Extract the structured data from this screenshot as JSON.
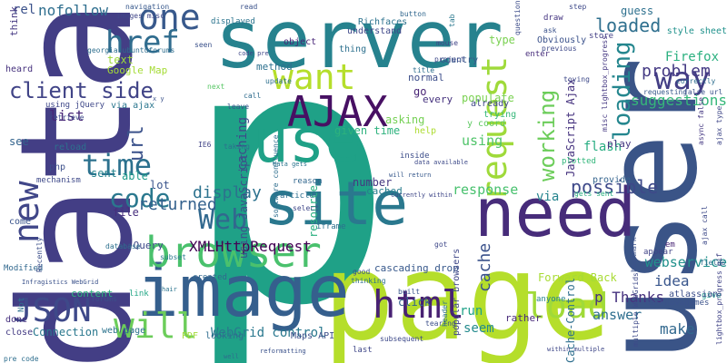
{
  "word_cloud": {
    "words": [
      {
        "text": "p",
        "color": "#1fa187"
      },
      {
        "text": "data",
        "color": "#433e85"
      },
      {
        "text": "user",
        "color": "#3a5487"
      },
      {
        "text": "page",
        "color": "#b5de2b"
      },
      {
        "text": "server",
        "color": "#26828e"
      },
      {
        "text": "image",
        "color": "#355f8d"
      },
      {
        "text": "use",
        "color": "#1fa187"
      },
      {
        "text": "site",
        "color": "#2a788e"
      },
      {
        "text": "need",
        "color": "#472c7a"
      },
      {
        "text": "AJAX",
        "color": "#471063"
      },
      {
        "text": "browser",
        "color": "#4ac16d"
      },
      {
        "text": "want",
        "color": "#b5de2b"
      },
      {
        "text": "html",
        "color": "#482173"
      },
      {
        "text": "request",
        "color": "#9fda3a"
      },
      {
        "text": "will",
        "color": "#6ccd5a"
      },
      {
        "text": "one",
        "color": "#38598c"
      },
      {
        "text": "way",
        "color": "#433e85"
      },
      {
        "text": "new",
        "color": "#404688"
      },
      {
        "text": "load",
        "color": "#a0da39"
      },
      {
        "text": "JSON",
        "color": "#3e4989"
      },
      {
        "text": "time",
        "color": "#2c718e"
      },
      {
        "text": "href",
        "color": "#2f6c8e"
      },
      {
        "text": "client side",
        "color": "#414487"
      },
      {
        "text": "code",
        "color": "#2a788e"
      },
      {
        "text": "Web",
        "color": "#31688e"
      },
      {
        "text": "loading",
        "color": "#24868e"
      },
      {
        "text": "loaded",
        "color": "#2e6f8e"
      },
      {
        "text": "working",
        "color": "#6ccd5a"
      },
      {
        "text": "url",
        "color": "#3b528b"
      },
      {
        "text": "problem",
        "color": "#443983"
      },
      {
        "text": "possible",
        "color": "#3e4989"
      },
      {
        "text": "returned",
        "color": "#34618d"
      },
      {
        "text": "display",
        "color": "#2c728e"
      },
      {
        "text": "XMLHttpRequest",
        "color": "#440154"
      },
      {
        "text": "suggestions",
        "color": "#35b779"
      },
      {
        "text": "webservice",
        "color": "#21918c"
      },
      {
        "text": "Firefox",
        "color": "#2ab07f"
      },
      {
        "text": "cache",
        "color": "#3b528b"
      },
      {
        "text": "response",
        "color": "#48c16e"
      },
      {
        "text": "using",
        "color": "#50c46a"
      },
      {
        "text": "list",
        "color": "#482878"
      },
      {
        "text": "idea",
        "color": "#39568c"
      },
      {
        "text": "p Thanks",
        "color": "#46327e"
      },
      {
        "text": "answer",
        "color": "#2e6e8e"
      },
      {
        "text": "make",
        "color": "#31688e"
      },
      {
        "text": "flash",
        "color": "#27ad81"
      },
      {
        "text": "run",
        "color": "#1fa187"
      },
      {
        "text": "seem",
        "color": "#238a8d"
      },
      {
        "text": "caching",
        "color": "#3e4989"
      },
      {
        "text": "sent",
        "color": "#25838e"
      },
      {
        "text": "able",
        "color": "#1e9b8a"
      },
      {
        "text": "WebGrid control",
        "color": "#2a788e"
      },
      {
        "text": "Forward Back",
        "color": "#a8db34"
      },
      {
        "text": "JavaScript Ajax",
        "color": "#46337f"
      },
      {
        "text": "Cache-Control",
        "color": "#2e6f8e"
      },
      {
        "text": "using JavaScript",
        "color": "#3c508b"
      },
      {
        "text": "resource",
        "color": "#29af7f"
      },
      {
        "text": "via",
        "color": "#25848e"
      },
      {
        "text": "nofollow",
        "color": "#2e6e8e"
      },
      {
        "text": "rel",
        "color": "#3b528b"
      },
      {
        "text": "Google Map",
        "color": "#a5db36"
      },
      {
        "text": "method",
        "color": "#2d708e"
      },
      {
        "text": "asking",
        "color": "#75d054"
      },
      {
        "text": "given time",
        "color": "#2db27d"
      },
      {
        "text": "populate",
        "color": "#7ad151"
      },
      {
        "text": "type",
        "color": "#7ad151"
      },
      {
        "text": "number",
        "color": "#453781"
      },
      {
        "text": "cached",
        "color": "#287d8e"
      },
      {
        "text": "lot",
        "color": "#3a548c"
      },
      {
        "text": "file",
        "color": "#472f7d"
      },
      {
        "text": "text",
        "color": "#9dd93b"
      },
      {
        "text": "jQuery",
        "color": "#3e4989"
      },
      {
        "text": "cascading drop",
        "color": "#38598c"
      },
      {
        "text": "click",
        "color": "#33628d"
      },
      {
        "text": "go",
        "color": "#482475"
      },
      {
        "text": "normal",
        "color": "#3d4e8a"
      },
      {
        "text": "every",
        "color": "#46327e"
      },
      {
        "text": "Obviously",
        "color": "#3b528b"
      },
      {
        "text": "style sheet",
        "color": "#20928c"
      },
      {
        "text": "guess",
        "color": "#2d708e"
      },
      {
        "text": "Maps API",
        "color": "#3c4f8a"
      },
      {
        "text": "web page",
        "color": "#2c738e"
      },
      {
        "text": "Connection",
        "color": "#2a788e"
      },
      {
        "text": "content",
        "color": "#2db27d"
      },
      {
        "text": "close",
        "color": "#443b84"
      },
      {
        "text": "done",
        "color": "#46307e"
      },
      {
        "text": "come",
        "color": "#3a548c"
      },
      {
        "text": "see",
        "color": "#33638d"
      },
      {
        "text": "think",
        "color": "#453882"
      },
      {
        "text": "heard",
        "color": "#46327e"
      },
      {
        "text": "php",
        "color": "#3c4f8a"
      },
      {
        "text": "reload",
        "color": "#2d708e"
      },
      {
        "text": "mechanism",
        "color": "#3e4989"
      },
      {
        "text": "via ajax",
        "color": "#2a768e"
      },
      {
        "text": "country",
        "color": "#38598c"
      },
      {
        "text": "object",
        "color": "#482677"
      },
      {
        "text": "thing",
        "color": "#2d708e"
      },
      {
        "text": "y coord",
        "color": "#5ec962"
      },
      {
        "text": "already",
        "color": "#3f4788"
      },
      {
        "text": "trying",
        "color": "#35b779"
      },
      {
        "text": "play",
        "color": "#453781"
      },
      {
        "text": "provide",
        "color": "#33638d"
      },
      {
        "text": "rather",
        "color": "#482979"
      },
      {
        "text": "anyone",
        "color": "#26818e"
      },
      {
        "text": "store",
        "color": "#433e85"
      },
      {
        "text": "enter",
        "color": "#472d7b"
      },
      {
        "text": "Richfaces",
        "color": "#2c728e"
      },
      {
        "text": "understand",
        "color": "#3f4889"
      },
      {
        "text": "navigation",
        "color": "#38598c"
      },
      {
        "text": "images misc",
        "color": "#404688"
      },
      {
        "text": "displayed",
        "color": "#2b748e"
      },
      {
        "text": "read",
        "color": "#3b528b"
      },
      {
        "text": "button",
        "color": "#31678e"
      },
      {
        "text": "step",
        "color": "#3e4989"
      },
      {
        "text": "question",
        "color": "#3d4d8a"
      },
      {
        "text": "seen",
        "color": "#3b528b"
      },
      {
        "text": "draw",
        "color": "#453581"
      },
      {
        "text": "project",
        "color": "#3e4a89"
      },
      {
        "text": "title",
        "color": "#2e6e8e"
      },
      {
        "text": "update",
        "color": "#2d708e"
      },
      {
        "text": "next",
        "color": "#58c765"
      },
      {
        "text": "call",
        "color": "#2f6c8e"
      },
      {
        "text": "leave",
        "color": "#3a548c"
      },
      {
        "text": "taking",
        "color": "#2c718e"
      },
      {
        "text": "IE6",
        "color": "#414487"
      },
      {
        "text": "help",
        "color": "#addc30"
      },
      {
        "text": "plotted",
        "color": "#32b67a"
      },
      {
        "text": "gets sent",
        "color": "#29af7f"
      },
      {
        "text": "select",
        "color": "#3f4788"
      },
      {
        "text": "reason",
        "color": "#31678e"
      },
      {
        "text": "inside",
        "color": "#3d4e8a"
      },
      {
        "text": "article",
        "color": "#2e6f8e"
      },
      {
        "text": "iframe",
        "color": "#2d708e"
      },
      {
        "text": "got",
        "color": "#3f4889"
      },
      {
        "text": "built",
        "color": "#39568c"
      },
      {
        "text": "good",
        "color": "#3b528b"
      },
      {
        "text": "thinking",
        "color": "#2e6e8e"
      },
      {
        "text": "tearing",
        "color": "#3c4f8a"
      },
      {
        "text": "subset",
        "color": "#2a788e"
      },
      {
        "text": "link",
        "color": "#21a685"
      },
      {
        "text": "created",
        "color": "#31688e"
      },
      {
        "text": "looking",
        "color": "#2f6c8e"
      },
      {
        "text": "PDF",
        "color": "#a2da37"
      },
      {
        "text": "last",
        "color": "#3f4788"
      },
      {
        "text": "bookmark",
        "color": "#3b528b"
      },
      {
        "text": "appear",
        "color": "#414487"
      },
      {
        "text": "em",
        "color": "#482475"
      },
      {
        "text": "give",
        "color": "#1f968b"
      },
      {
        "text": "fields",
        "color": "#2d708e"
      },
      {
        "text": "toying",
        "color": "#3e4989"
      },
      {
        "text": "requesting",
        "color": "#38598c"
      },
      {
        "text": "correctly",
        "color": "#2e6e8e"
      },
      {
        "text": "false url",
        "color": "#3b528b"
      },
      {
        "text": "async false",
        "color": "#453882"
      },
      {
        "text": "ajax type",
        "color": "#3f4788"
      },
      {
        "text": "ajax call",
        "color": "#3e4a89"
      },
      {
        "text": "darknovagames",
        "color": "#3b528b"
      },
      {
        "text": "atlassian",
        "color": "#3c4f8a"
      },
      {
        "text": "lightbox_progress gif",
        "color": "#414487"
      },
      {
        "text": "misc lightbox_progress",
        "color": "#453882"
      },
      {
        "text": "pre code",
        "color": "#2e6e8e"
      },
      {
        "text": "using jQuery",
        "color": "#3f4889"
      },
      {
        "text": "retrieve",
        "color": "#3e4989"
      },
      {
        "text": "Modified",
        "color": "#31688e"
      },
      {
        "text": "Infragistics WebGrid",
        "color": "#3b528b"
      },
      {
        "text": "software confluence",
        "color": "#2e6e8e"
      },
      {
        "text": "popular browsers",
        "color": "#3f4788"
      },
      {
        "text": "Recently",
        "color": "#3c4f8a"
      },
      {
        "text": "database",
        "color": "#2d708e"
      },
      {
        "text": "hair",
        "color": "#2b748e"
      },
      {
        "text": "subsequent",
        "color": "#3e4a89"
      },
      {
        "text": "reformatting",
        "color": "#3b528b"
      },
      {
        "text": "currently within",
        "color": "#3f4788"
      },
      {
        "text": "multiple WebGrids",
        "color": "#3e4989"
      },
      {
        "text": "georgia.ubuntuforums",
        "color": "#2e6e8e"
      },
      {
        "text": "x y",
        "color": "#3b528b"
      },
      {
        "text": "data gets",
        "color": "#2b748e"
      },
      {
        "text": "data available",
        "color": "#3e4a89"
      },
      {
        "text": "will return",
        "color": "#38598c"
      },
      {
        "text": "within multiple",
        "color": "#3f4788"
      },
      {
        "text": "header",
        "color": "#2d708e"
      },
      {
        "text": "ask",
        "color": "#3b528b"
      },
      {
        "text": "previous",
        "color": "#3e4989"
      },
      {
        "text": "mouse",
        "color": "#414487"
      },
      {
        "text": "tab",
        "color": "#2a788e"
      },
      {
        "text": "code pre",
        "color": "#3f4788"
      },
      {
        "text": "forums",
        "color": "#3c4f8a"
      },
      {
        "text": "Not",
        "color": "#2d708e"
      },
      {
        "text": "well",
        "color": "#2e6e8e"
      },
      {
        "text": "available data",
        "color": "#3e4a89"
      }
    ]
  }
}
